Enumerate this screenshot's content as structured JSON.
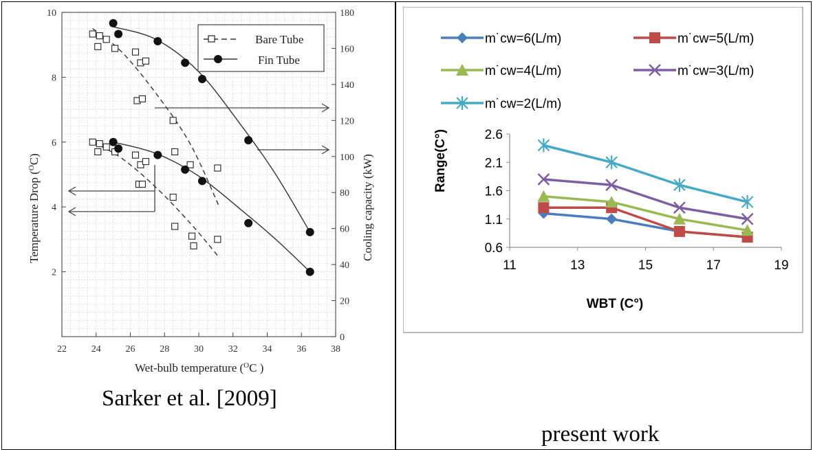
{
  "left_caption": "Sarker et al. [2009]",
  "right_caption": "present work",
  "chart_data": [
    {
      "type": "scatter",
      "xlabel": "Wet-bulb temperature (",
      "xlabel_sup": "O",
      "xlabel_end": "C )",
      "ylabel": "Temperature Drop (",
      "ylabel_sup": "O",
      "ylabel_end": "C)",
      "y2label": "Cooling capacity (kW)",
      "xlim": [
        22,
        38
      ],
      "ylim": [
        0,
        10
      ],
      "y2lim": [
        0,
        180
      ],
      "x_ticks": [
        "22",
        "24",
        "26",
        "28",
        "30",
        "32",
        "34",
        "36",
        "38"
      ],
      "y_ticks": [
        "2",
        "4",
        "6",
        "8",
        "10"
      ],
      "y2_ticks": [
        "0",
        "20",
        "40",
        "60",
        "80",
        "100",
        "120",
        "140",
        "160",
        "180"
      ],
      "legend_position": "top-right",
      "series": [
        {
          "name": "Bare Tube",
          "marker": "open-square",
          "line": "dashed",
          "axis": "right",
          "points": [
            [
              23.8,
              168
            ],
            [
              24.2,
              167
            ],
            [
              24.6,
              165
            ],
            [
              24.1,
              161
            ],
            [
              25.1,
              160
            ],
            [
              26.3,
              158
            ],
            [
              26.6,
              152
            ],
            [
              26.9,
              153
            ],
            [
              26.4,
              131
            ],
            [
              26.7,
              132
            ],
            [
              28.5,
              120
            ]
          ],
          "fit": [
            [
              23.8,
              171
            ],
            [
              25.5,
              158
            ],
            [
              27.5,
              135
            ],
            [
              29.5,
              107
            ],
            [
              31.2,
              72
            ]
          ]
        },
        {
          "name": "Bare Tube",
          "marker": "open-square",
          "line": "dashed",
          "axis": "left",
          "points": [
            [
              23.8,
              6.0
            ],
            [
              24.2,
              5.95
            ],
            [
              24.6,
              5.85
            ],
            [
              24.1,
              5.7
            ],
            [
              25.1,
              5.7
            ],
            [
              26.3,
              5.6
            ],
            [
              26.6,
              5.3
            ],
            [
              26.9,
              5.4
            ],
            [
              26.5,
              4.7
            ],
            [
              26.7,
              4.7
            ],
            [
              28.6,
              5.7
            ],
            [
              29.5,
              5.3
            ],
            [
              31.1,
              5.2
            ],
            [
              28.5,
              4.3
            ],
            [
              28.6,
              3.4
            ],
            [
              29.6,
              3.1
            ],
            [
              29.7,
              2.8
            ],
            [
              31.1,
              3.0
            ]
          ],
          "fit": [
            [
              23.8,
              6.0
            ],
            [
              25.5,
              5.5
            ],
            [
              27.5,
              4.6
            ],
            [
              29.5,
              3.5
            ],
            [
              31.1,
              2.5
            ]
          ]
        },
        {
          "name": "Fin Tube",
          "marker": "filled-circle",
          "line": "solid",
          "axis": "right",
          "points": [
            [
              25.0,
              174
            ],
            [
              25.3,
              168
            ],
            [
              27.6,
              164
            ],
            [
              29.2,
              152
            ],
            [
              30.2,
              143
            ],
            [
              32.9,
              109
            ],
            [
              36.5,
              58
            ]
          ],
          "fit": [
            [
              25.0,
              172
            ],
            [
              27.5,
              165
            ],
            [
              30.0,
              147
            ],
            [
              32.5,
              117
            ],
            [
              34.5,
              90
            ],
            [
              36.5,
              58
            ]
          ]
        },
        {
          "name": "Fin Tube",
          "marker": "filled-circle",
          "line": "solid",
          "axis": "left",
          "points": [
            [
              25.0,
              6.0
            ],
            [
              25.3,
              5.8
            ],
            [
              27.6,
              5.6
            ],
            [
              29.2,
              5.15
            ],
            [
              30.2,
              4.8
            ],
            [
              32.9,
              3.5
            ],
            [
              36.5,
              2.0
            ]
          ],
          "fit": [
            [
              25.0,
              6.0
            ],
            [
              27.5,
              5.65
            ],
            [
              30.0,
              4.95
            ],
            [
              32.5,
              3.9
            ],
            [
              34.5,
              3.0
            ],
            [
              36.5,
              2.0
            ]
          ]
        }
      ],
      "legend": [
        "Bare Tube",
        "Fin Tube"
      ]
    },
    {
      "type": "line",
      "xlabel": "WBT (C°)",
      "ylabel": "Range(C°)",
      "xlim": [
        11,
        19
      ],
      "ylim": [
        0.6,
        2.6
      ],
      "x_ticks": [
        "11",
        "13",
        "15",
        "17",
        "19"
      ],
      "y_ticks": [
        "0.6",
        "1.1",
        "1.6",
        "2.1",
        "2.6"
      ],
      "x": [
        12,
        14,
        16,
        18
      ],
      "legend_position": "top",
      "series": [
        {
          "name": "m˙cw=6(L/m)",
          "values": [
            1.2,
            1.1,
            0.88,
            0.78
          ],
          "color": "#4a7ebb",
          "marker": "diamond"
        },
        {
          "name": "m˙cw=5(L/m)",
          "values": [
            1.3,
            1.3,
            0.88,
            0.78
          ],
          "color": "#be4b48",
          "marker": "square"
        },
        {
          "name": "m˙cw=4(L/m)",
          "values": [
            1.5,
            1.4,
            1.1,
            0.9
          ],
          "color": "#98b954",
          "marker": "triangle"
        },
        {
          "name": "m˙cw=3(L/m)",
          "values": [
            1.8,
            1.7,
            1.3,
            1.1
          ],
          "color": "#7d5fa0",
          "marker": "x"
        },
        {
          "name": "m˙cw=2(L/m)",
          "values": [
            2.4,
            2.1,
            1.7,
            1.4
          ],
          "color": "#46aac5",
          "marker": "star"
        }
      ]
    }
  ]
}
